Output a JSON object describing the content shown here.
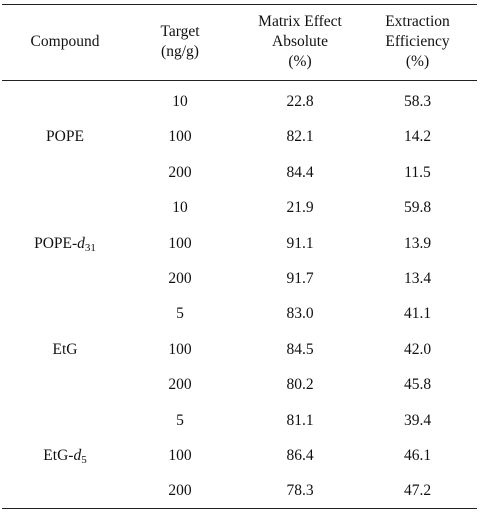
{
  "table": {
    "headers": {
      "compound": [
        "Compound"
      ],
      "target": [
        "Target",
        "(ng/g)"
      ],
      "matrix": [
        "Matrix Effect",
        "Absolute",
        "(%)"
      ],
      "extraction": [
        "Extraction",
        "Efficiency",
        "(%)"
      ]
    },
    "groups": [
      {
        "compound": {
          "base": "POPE",
          "suffix": "",
          "sub": ""
        },
        "rows": [
          {
            "target": "10",
            "matrix": "22.8",
            "extraction": "58.3"
          },
          {
            "target": "100",
            "matrix": "82.1",
            "extraction": "14.2"
          },
          {
            "target": "200",
            "matrix": "84.4",
            "extraction": "11.5"
          }
        ]
      },
      {
        "compound": {
          "base": "POPE-",
          "suffix": "d",
          "sub": "31"
        },
        "rows": [
          {
            "target": "10",
            "matrix": "21.9",
            "extraction": "59.8"
          },
          {
            "target": "100",
            "matrix": "91.1",
            "extraction": "13.9"
          },
          {
            "target": "200",
            "matrix": "91.7",
            "extraction": "13.4"
          }
        ]
      },
      {
        "compound": {
          "base": "EtG",
          "suffix": "",
          "sub": ""
        },
        "rows": [
          {
            "target": "5",
            "matrix": "83.0",
            "extraction": "41.1"
          },
          {
            "target": "100",
            "matrix": "84.5",
            "extraction": "42.0"
          },
          {
            "target": "200",
            "matrix": "80.2",
            "extraction": "45.8"
          }
        ]
      },
      {
        "compound": {
          "base": "EtG-",
          "suffix": "d",
          "sub": "5"
        },
        "rows": [
          {
            "target": "5",
            "matrix": "81.1",
            "extraction": "39.4"
          },
          {
            "target": "100",
            "matrix": "86.4",
            "extraction": "46.1"
          },
          {
            "target": "200",
            "matrix": "78.3",
            "extraction": "47.2"
          }
        ]
      }
    ]
  }
}
